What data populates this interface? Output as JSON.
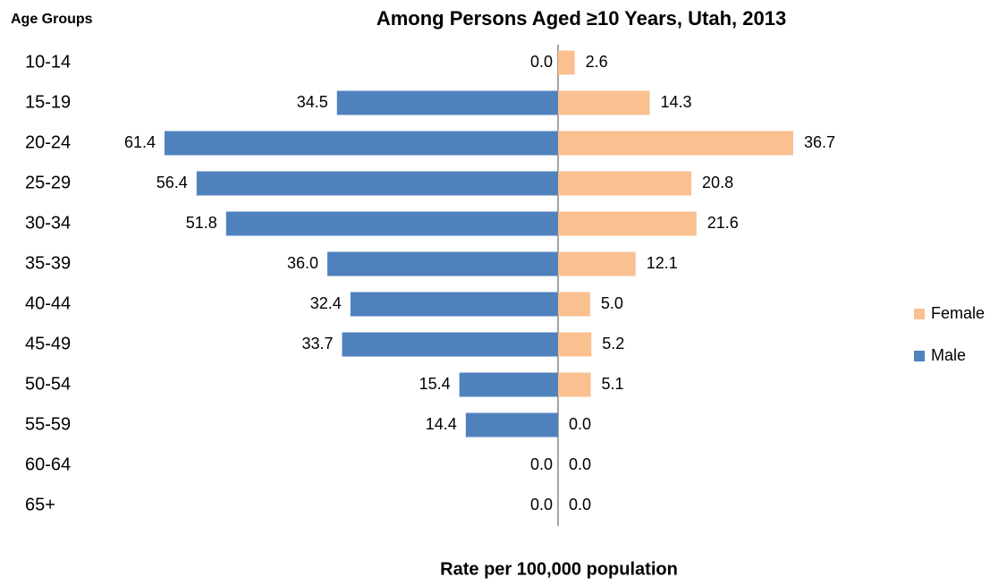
{
  "chart_data": {
    "type": "bar",
    "orientation": "horizontal",
    "layout": "butterfly",
    "title": "Among Persons Aged ≥10 Years, Utah, 2013",
    "y_label": "Age Groups",
    "x_label": "Rate per 100,000 population",
    "categories": [
      "10-14",
      "15-19",
      "20-24",
      "25-29",
      "30-34",
      "35-39",
      "40-44",
      "45-49",
      "50-54",
      "55-59",
      "60-64",
      "65+"
    ],
    "series": [
      {
        "name": "Female",
        "color": "#fac090",
        "side": "right",
        "values": [
          2.6,
          14.3,
          36.7,
          20.8,
          21.6,
          12.1,
          5.0,
          5.2,
          5.1,
          0.0,
          0.0,
          0.0
        ],
        "value_labels": [
          "2.6",
          "14.3",
          "36.7",
          "20.8",
          "21.6",
          "12.1",
          "5.0",
          "5.2",
          "5.1",
          "0.0",
          "0.0",
          "0.0"
        ]
      },
      {
        "name": "Male",
        "color": "#4f81bd",
        "side": "left",
        "values": [
          0.0,
          34.5,
          61.4,
          56.4,
          51.8,
          36.0,
          32.4,
          33.7,
          15.4,
          14.4,
          0.0,
          0.0
        ],
        "value_labels": [
          "0.0",
          "34.5",
          "61.4",
          "56.4",
          "51.8",
          "36.0",
          "32.4",
          "33.7",
          "15.4",
          "14.4",
          "0.0",
          "0.0"
        ]
      }
    ],
    "legend": "right"
  }
}
